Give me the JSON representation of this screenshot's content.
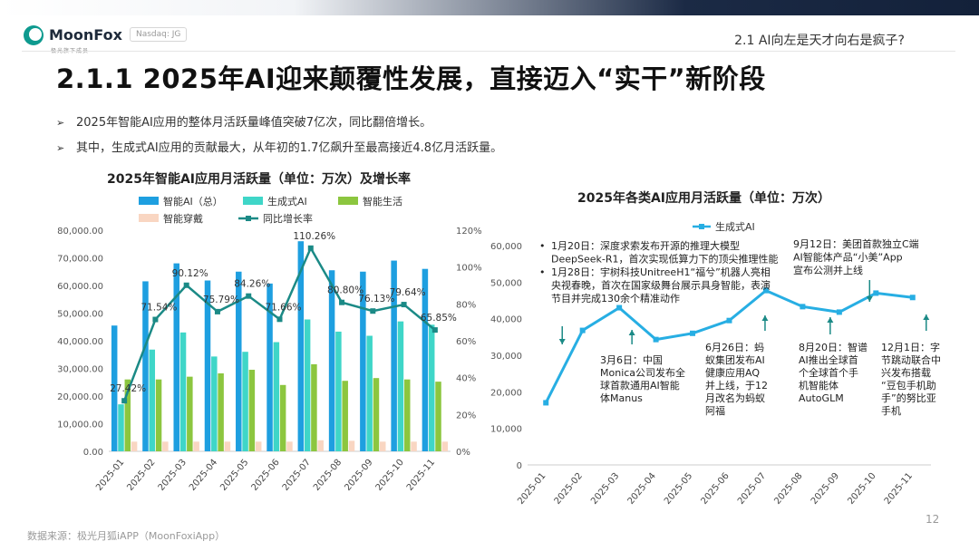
{
  "header": {
    "logo_text": "MoonFox",
    "logo_sub": "极光旗下成员",
    "ticker": "Nasdaq: JG",
    "section": "2.1 AI向左是天才向右是疯子?"
  },
  "page_title": "2.1.1 2025年AI迎来颠覆性发展，直接迈入“实干”新阶段",
  "bullets": [
    "2025年智能AI应用的整体月活跃量峰值突破7亿次，同比翻倍增长。",
    "其中，生成式AI应用的贡献最大，从年初的1.7亿飙升至最高接近4.8亿月活跃量。"
  ],
  "footer": {
    "source": "数据来源：极光月狐iAPP（MoonFoxiApp）",
    "page_number": "12"
  },
  "colors": {
    "ai_total": "#1e9fe0",
    "gen_ai": "#3fd6c8",
    "smart_life": "#8cc63f",
    "smart_wear": "#f9d6c2",
    "growth": "#1b8a86",
    "line2": "#27aee3"
  },
  "chart_data": [
    {
      "type": "bar",
      "title": "2025年智能AI应用月活跃量（单位：万次）及增长率",
      "categories": [
        "2025-01",
        "2025-02",
        "2025-03",
        "2025-04",
        "2025-05",
        "2025-06",
        "2025-07",
        "2025-08",
        "2025-09",
        "2025-10",
        "2025-11"
      ],
      "series": [
        {
          "name": "智能AI（总）",
          "values": [
            45500,
            61500,
            68000,
            61800,
            65000,
            60700,
            76000,
            65500,
            65000,
            69000,
            66000
          ]
        },
        {
          "name": "生成式AI",
          "values": [
            17000,
            36800,
            43000,
            34300,
            36000,
            39500,
            47700,
            43300,
            41800,
            47000,
            45800
          ]
        },
        {
          "name": "智能生活",
          "values": [
            26000,
            26000,
            27000,
            28200,
            29500,
            24000,
            31500,
            25500,
            26500,
            26000,
            25200
          ]
        },
        {
          "name": "智能穿戴",
          "values": [
            3500,
            3500,
            3500,
            3500,
            3500,
            3500,
            4000,
            3800,
            3500,
            3500,
            3500
          ]
        },
        {
          "name": "同比增长率",
          "axis": "right",
          "kind": "line",
          "values": [
            27.42,
            71.54,
            90.12,
            75.79,
            84.26,
            71.66,
            110.26,
            80.8,
            76.13,
            79.64,
            65.85
          ]
        }
      ],
      "data_labels": [
        "27.42%",
        "71.54%",
        "90.12%",
        "75.79%",
        "84.26%",
        "71.66%",
        "110.26%",
        "80.80%",
        "76.13%",
        "79.64%",
        "65.85%"
      ],
      "ylim": [
        0,
        80000
      ],
      "yticks": [
        "0.00",
        "10,000.00",
        "20,000.00",
        "30,000.00",
        "40,000.00",
        "50,000.00",
        "60,000.00",
        "70,000.00",
        "80,000.00"
      ],
      "y2lim": [
        0,
        120
      ],
      "y2ticks": [
        "0%",
        "20%",
        "40%",
        "60%",
        "80%",
        "100%",
        "120%"
      ],
      "legend_position": "top"
    },
    {
      "type": "line",
      "title": "2025年各类AI应用月活跃量（单位：万次）",
      "categories": [
        "2025-01",
        "2025-02",
        "2025-03",
        "2025-04",
        "2025-05",
        "2025-06",
        "2025-07",
        "2025-08",
        "2025-09",
        "2025-10",
        "2025-11"
      ],
      "series": [
        {
          "name": "生成式AI",
          "values": [
            17000,
            36800,
            43000,
            34300,
            36000,
            39500,
            47700,
            43300,
            41800,
            47000,
            45800
          ]
        }
      ],
      "ylim": [
        0,
        60000
      ],
      "yticks": [
        "0",
        "10,000",
        "20,000",
        "30,000",
        "40,000",
        "50,000",
        "60,000"
      ],
      "annotations": [
        [
          "1月20日：深度求索发布开源的推理大模型",
          "DeepSeek-R1，首次实现低算力下的顶尖推理性能",
          "1月28日：宇树科技UnitreeH1“福兮”机器人亮相",
          "央视春晚，首次在国家级舞台展示具身智能，表演",
          "节目并完成130余个精准动作"
        ],
        [
          "3月6日：中国",
          "Monica公司发布全",
          "球首款通用AI智能",
          "体Manus"
        ],
        [
          "6月26日：蚂",
          "蚁集团发布AI",
          "健康应用AQ",
          "并上线，于12",
          "月改名为蚂蚁",
          "阿福"
        ],
        [
          "8月20日：智谱",
          "AI推出全球首",
          "个全球首个手",
          "机智能体",
          "AutoGLM"
        ],
        [
          "9月12日：美团首款独立C端",
          "AI智能体产品“小美”App",
          "宣布公测并上线"
        ],
        [
          "12月1日：字",
          "节跳动联合中",
          "兴发布搭载",
          "“豆包手机助",
          "手”的努比亚",
          "手机"
        ]
      ],
      "legend_position": "top"
    }
  ]
}
